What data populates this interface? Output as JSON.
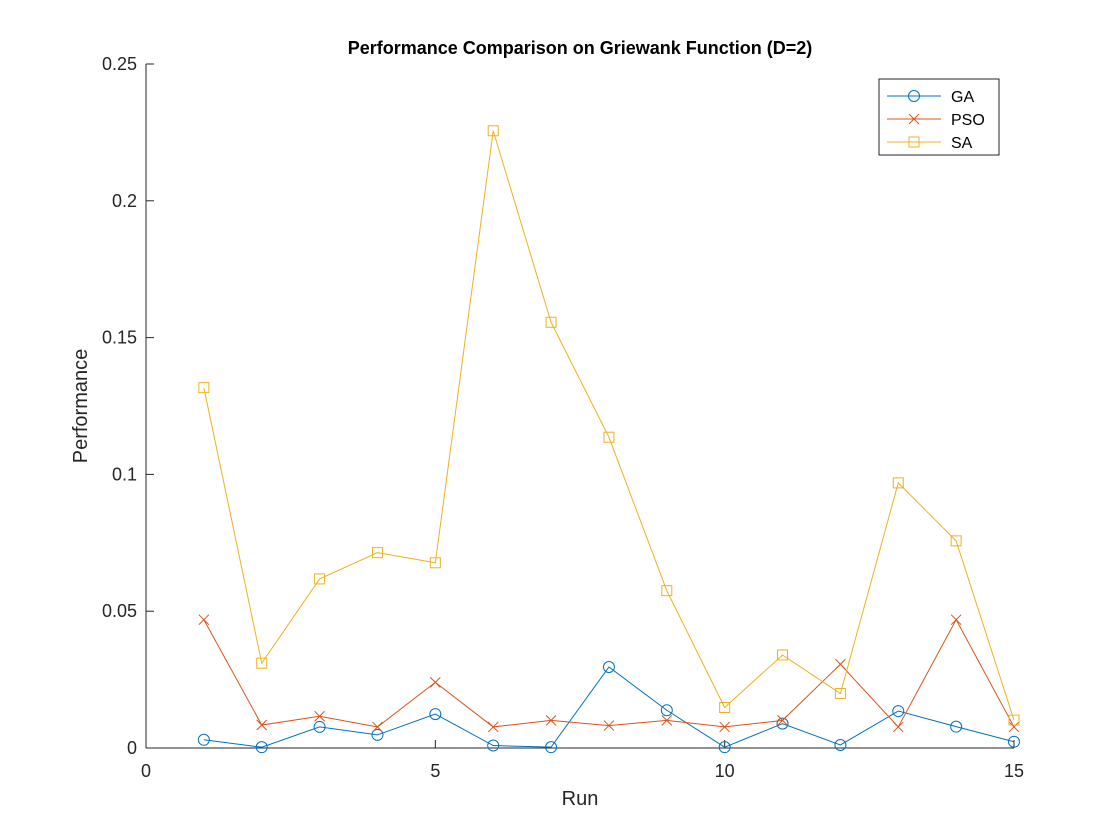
{
  "chart_data": {
    "type": "line",
    "title": "Performance Comparison on Griewank Function (D=2)",
    "xlabel": "Run",
    "ylabel": "Performance",
    "xlim": [
      0,
      15
    ],
    "ylim": [
      0,
      0.25
    ],
    "xticks": [
      0,
      5,
      10,
      15
    ],
    "xtick_labels": [
      "0",
      "5",
      "10",
      "15"
    ],
    "yticks": [
      0,
      0.05,
      0.1,
      0.15,
      0.2,
      0.25
    ],
    "ytick_labels": [
      "0",
      "0.05",
      "0.1",
      "0.15",
      "0.2",
      "0.25"
    ],
    "grid": false,
    "legend_position": "top-right",
    "x": [
      1,
      2,
      3,
      4,
      5,
      6,
      7,
      8,
      9,
      10,
      11,
      12,
      13,
      14,
      15
    ],
    "series": [
      {
        "name": "GA",
        "marker": "circle",
        "color": "#0072BD",
        "values": [
          0.003,
          0.0003,
          0.0077,
          0.0048,
          0.0124,
          0.0009,
          0.0003,
          0.0296,
          0.0138,
          0.0003,
          0.0089,
          0.0011,
          0.0135,
          0.0078,
          0.0023
        ]
      },
      {
        "name": "PSO",
        "marker": "x",
        "color": "#D95319",
        "values": [
          0.0469,
          0.0084,
          0.0116,
          0.0077,
          0.024,
          0.0077,
          0.0101,
          0.0082,
          0.0101,
          0.0077,
          0.0101,
          0.0306,
          0.0077,
          0.0469,
          0.0077
        ]
      },
      {
        "name": "SA",
        "marker": "square",
        "color": "#EDB120",
        "values": [
          0.1317,
          0.031,
          0.0618,
          0.0714,
          0.0677,
          0.2256,
          0.1556,
          0.1136,
          0.0575,
          0.0148,
          0.034,
          0.0199,
          0.0969,
          0.0757,
          0.0102
        ]
      }
    ]
  }
}
